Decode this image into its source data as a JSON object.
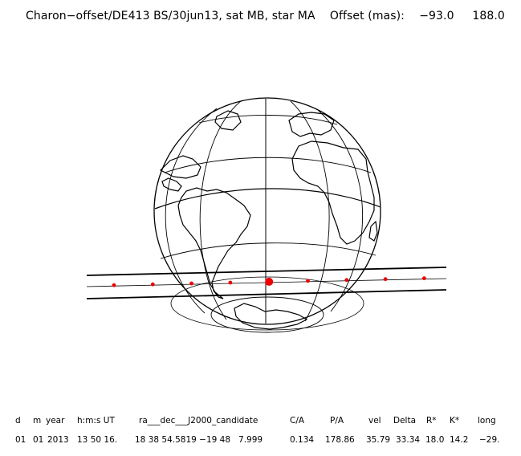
{
  "title": "Charon−offset/DE413 BS/30jun13, sat MB, star MA    Offset (mas):    −93.0     188.0",
  "table": {
    "headers": [
      "d",
      "m",
      "year",
      "h:m:s UT",
      "ra___dec___J2000_candidate",
      "C/A",
      "P/A",
      "vel",
      "Delta",
      "R*",
      "K*",
      "long"
    ],
    "values": [
      "01",
      "01",
      "2013",
      "13 50 16.",
      "18 38 54.5819 −19 48   7.999",
      "0.134",
      "178.86",
      "35.79",
      "33.34",
      "18.0",
      "14.2",
      "−29."
    ]
  },
  "map": {
    "colors": {
      "limb": "#000000",
      "grid": "#000000",
      "shadow_edge": "#000000",
      "central_line": "#000000",
      "dots": "#ee0000"
    },
    "markers": {
      "count": 9,
      "central_index": 4
    }
  }
}
